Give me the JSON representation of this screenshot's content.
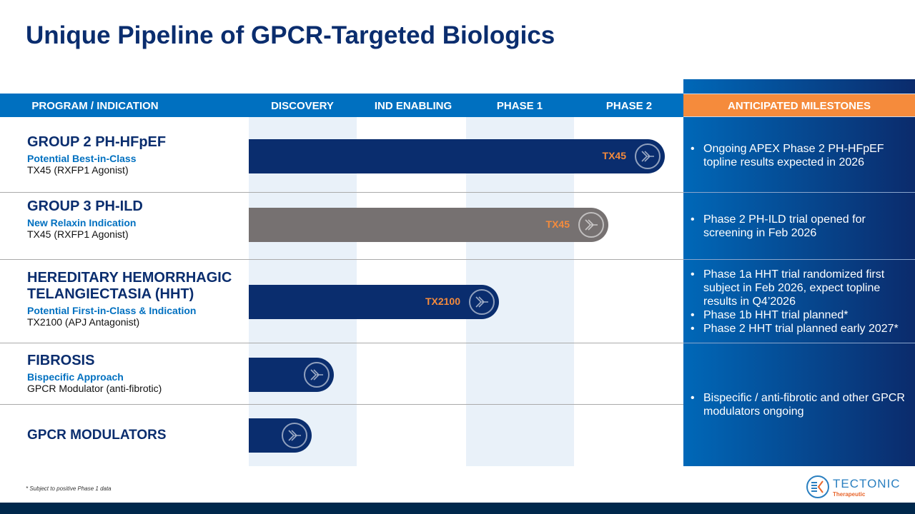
{
  "title": "Unique Pipeline of GPCR-Targeted Biologics",
  "header": {
    "program": "PROGRAM / INDICATION",
    "stages": [
      "DISCOVERY",
      "IND ENABLING",
      "PHASE 1",
      "PHASE 2"
    ],
    "milestones": "ANTICIPATED MILESTONES"
  },
  "programs": [
    {
      "name": "GROUP 2 PH-HFpEF",
      "subtitle": "Potential Best-in-Class",
      "detail": "TX45 (RXFP1 Agonist)",
      "bar_label": "TX45",
      "stage_reached": "PHASE 2",
      "bar_color": "#0a2d6e"
    },
    {
      "name": "GROUP 3 PH-ILD",
      "subtitle": "New Relaxin Indication",
      "detail": "TX45 (RXFP1 Agonist)",
      "bar_label": "TX45",
      "stage_reached": "PHASE 2",
      "bar_color": "#767171"
    },
    {
      "name": "HEREDITARY HEMORRHAGIC TELANGIECTASIA (HHT)",
      "subtitle": "Potential First-in-Class & Indication",
      "detail": "TX2100 (APJ Antagonist)",
      "bar_label": "TX2100",
      "stage_reached": "PHASE 1",
      "bar_color": "#0a2d6e"
    },
    {
      "name": "FIBROSIS",
      "subtitle": "Bispecific Approach",
      "detail": "GPCR Modulator (anti-fibrotic)",
      "bar_label": "",
      "stage_reached": "DISCOVERY",
      "bar_color": "#0a2d6e"
    },
    {
      "name": "GPCR MODULATORS",
      "subtitle": "",
      "detail": "",
      "bar_label": "",
      "stage_reached": "DISCOVERY",
      "bar_color": "#0a2d6e"
    }
  ],
  "milestones": [
    [
      "Ongoing APEX Phase 2 PH-HFpEF topline results expected in 2026"
    ],
    [
      "Phase 2 PH-ILD trial opened for screening in Feb 2026"
    ],
    [
      "Phase 1a HHT trial randomized first subject in Feb 2026, expect topline results in Q4’2026",
      "Phase 1b HHT trial planned*",
      "Phase 2 HHT trial planned early 2027*"
    ],
    [
      "Bispecific / anti-fibrotic and other GPCR modulators ongoing"
    ]
  ],
  "footnote": "* Subject to positive Phase 1 data",
  "logo": {
    "name": "TECTONIC",
    "tagline": "Therapeutic"
  },
  "colors": {
    "navy": "#0a2d6e",
    "blue": "#0070c0",
    "orange": "#f58b3c",
    "gray": "#767171"
  }
}
